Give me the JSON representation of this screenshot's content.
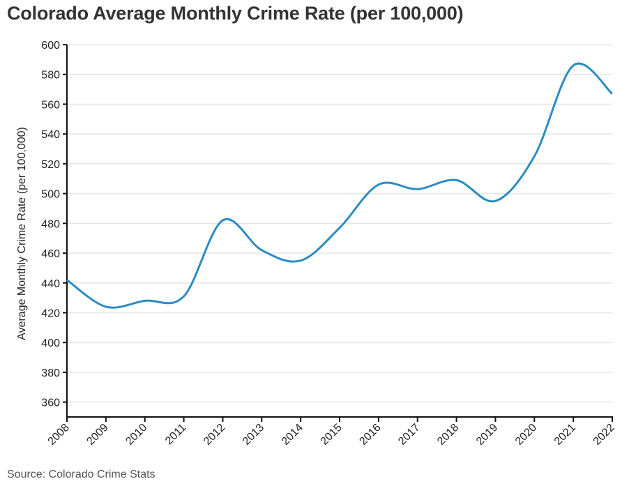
{
  "chart_data": {
    "type": "line",
    "title": "Colorado Average Monthly Crime Rate (per 100,000)",
    "xlabel": "",
    "ylabel": "Average Monthly Crime Rate (per 100,000)",
    "source": "Source: Colorado Crime Stats",
    "x": [
      2008,
      2009,
      2010,
      2011,
      2012,
      2013,
      2014,
      2015,
      2016,
      2017,
      2018,
      2019,
      2020,
      2021,
      2022
    ],
    "series": [
      {
        "values": [
          442,
          424,
          428,
          431,
          482,
          462,
          455,
          477,
          506,
          503,
          509,
          495,
          525,
          586,
          567
        ]
      }
    ],
    "xlim": [
      2008,
      2022
    ],
    "ylim": [
      350,
      600
    ],
    "yticks": [
      360,
      380,
      400,
      420,
      440,
      460,
      480,
      500,
      520,
      540,
      560,
      580,
      600
    ],
    "grid": true,
    "line_color": "#2b8cc4",
    "grid_color": "#e6e6e6"
  }
}
